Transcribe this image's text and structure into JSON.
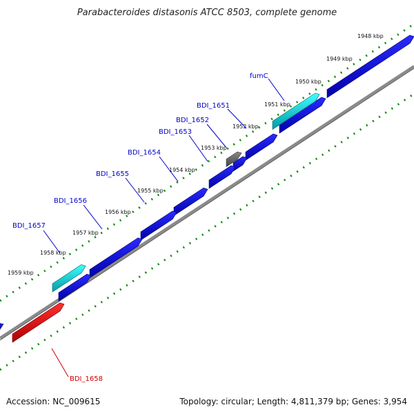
{
  "title": "Parabacteroides distasonis ATCC 8503, complete genome",
  "kbp_ticks": [
    "1948 kbp",
    "1949 kbp",
    "1950 kbp",
    "1951 kbp",
    "1952 kbp",
    "1953 kbp",
    "1954 kbp",
    "1955 kbp",
    "1956 kbp",
    "1957 kbp",
    "1958 kbp",
    "1959 kbp"
  ],
  "gene_labels": [
    {
      "text": "fumC",
      "color": "#0000cc"
    },
    {
      "text": "BDI_1651",
      "color": "#0000cc"
    },
    {
      "text": "BDI_1652",
      "color": "#0000cc"
    },
    {
      "text": "BDI_1653",
      "color": "#0000cc"
    },
    {
      "text": "BDI_1654",
      "color": "#0000cc"
    },
    {
      "text": "BDI_1655",
      "color": "#0000cc"
    },
    {
      "text": "BDI_1656",
      "color": "#0000cc"
    },
    {
      "text": "BDI_1657",
      "color": "#0000cc"
    },
    {
      "text": "BDI_1658",
      "color": "#cc0000"
    }
  ],
  "footer": {
    "accession": "Accession: NC_009615",
    "summary": "Topology: circular; Length: 4,811,379 bp; Genes: 3,954"
  },
  "colors": {
    "cds_forward": "#0000dd",
    "cds_highlight_forward": "#00d8dc",
    "cds_highlight_reverse": "#ee0000",
    "cds_other": "#666666",
    "backbone": "#888888",
    "tick_dots": "#118811"
  }
}
